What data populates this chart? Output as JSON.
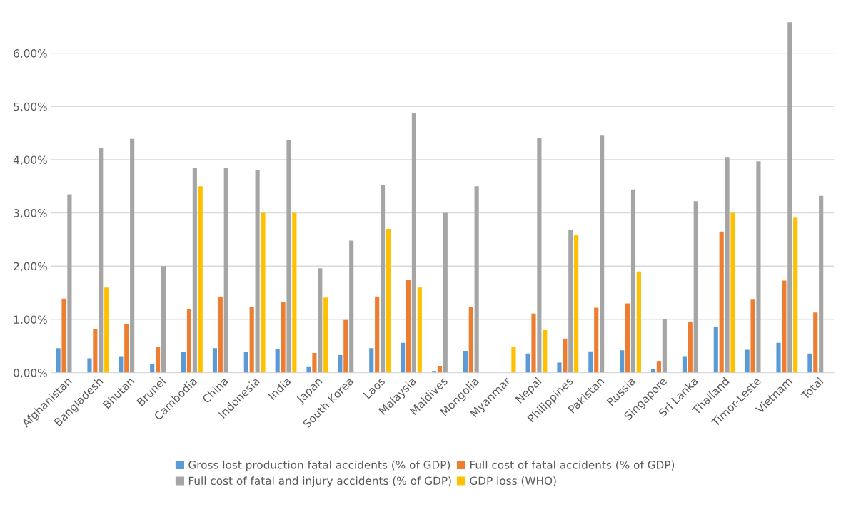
{
  "chart_data": {
    "type": "bar",
    "categories": [
      "Afghanistan",
      "Bangladesh",
      "Bhutan",
      "Brunei",
      "Cambodia",
      "China",
      "Indonesia",
      "India",
      "Japan",
      "South Korea",
      "Laos",
      "Malaysia",
      "Maldives",
      "Mongolia",
      "Myanmar",
      "Nepal",
      "Philippines",
      "Pakistan",
      "Russia",
      "Singapore",
      "Sri Lanka",
      "Thailand",
      "Timor-Leste",
      "Vietnam",
      "Total"
    ],
    "series": [
      {
        "name": "Gross lost production fatal accidents (% of GDP)",
        "color": "#5b9bd5",
        "values": [
          0.46,
          0.27,
          0.31,
          0.16,
          0.39,
          0.46,
          0.39,
          0.44,
          0.12,
          0.33,
          0.46,
          0.56,
          0.03,
          0.41,
          null,
          0.36,
          0.19,
          0.4,
          0.42,
          0.07,
          0.31,
          0.86,
          0.43,
          0.56,
          0.36
        ]
      },
      {
        "name": "Full cost of fatal accidents (% of GDP)",
        "color": "#ed7d31",
        "values": [
          1.39,
          0.82,
          0.92,
          0.48,
          1.2,
          1.43,
          1.24,
          1.32,
          0.37,
          0.99,
          1.43,
          1.75,
          0.13,
          1.24,
          null,
          1.11,
          0.64,
          1.22,
          1.3,
          0.22,
          0.96,
          2.65,
          1.37,
          1.73,
          1.13
        ]
      },
      {
        "name": "Full cost of fatal and injury accidents (% of GDP)",
        "color": "#a5a5a5",
        "values": [
          3.35,
          4.22,
          4.39,
          2.0,
          3.84,
          3.84,
          3.8,
          4.37,
          1.96,
          2.48,
          3.52,
          4.88,
          3.0,
          3.5,
          null,
          4.41,
          2.68,
          4.45,
          3.44,
          1.0,
          3.22,
          4.05,
          3.97,
          6.58,
          3.32
        ]
      },
      {
        "name": "GDP loss (WHO)",
        "color": "#ffc000",
        "values": [
          null,
          1.6,
          null,
          null,
          3.5,
          null,
          3.0,
          3.0,
          1.41,
          null,
          2.7,
          1.6,
          null,
          null,
          0.49,
          0.8,
          2.59,
          null,
          1.9,
          null,
          null,
          3.0,
          null,
          2.91,
          null
        ]
      }
    ],
    "ylim": [
      0,
      7
    ],
    "yticks": [
      {
        "value": 0,
        "label": "0,00%"
      },
      {
        "value": 1,
        "label": "1,00%"
      },
      {
        "value": 2,
        "label": "2,00%"
      },
      {
        "value": 3,
        "label": "3,00%"
      },
      {
        "value": 4,
        "label": "4,00%"
      },
      {
        "value": 5,
        "label": "5,00%"
      },
      {
        "value": 6,
        "label": "6,00%"
      }
    ],
    "grid": "y",
    "legend": "bottom"
  }
}
